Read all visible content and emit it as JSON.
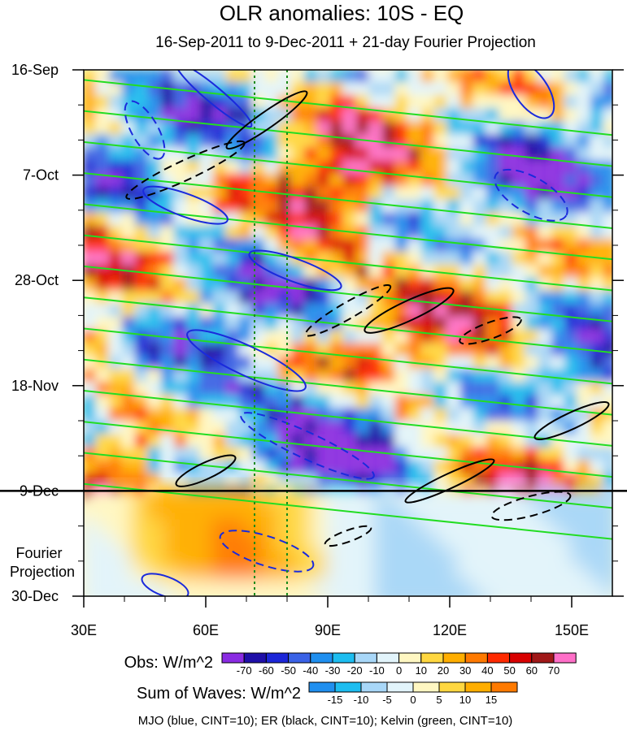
{
  "chart_data": {
    "type": "heatmap",
    "title": "OLR anomalies: 10S - EQ",
    "subtitle": "16-Sep-2011 to 9-Dec-2011 + 21-day Fourier Projection",
    "x_axis": {
      "range": [
        30,
        160
      ],
      "ticks": [
        30,
        60,
        90,
        120,
        150
      ],
      "tick_labels": [
        "30E",
        "60E",
        "90E",
        "120E",
        "150E"
      ]
    },
    "y_axis": {
      "range": [
        "16-Sep-2011",
        "30-Dec-2011"
      ],
      "direction": "downward",
      "tick_labels": [
        "16-Sep",
        "7-Oct",
        "28-Oct",
        "18-Nov",
        "9-Dec",
        "30-Dec"
      ],
      "tick_days": [
        0,
        21,
        42,
        63,
        84,
        105
      ]
    },
    "observation_end": "9-Dec",
    "projection_label": "Fourier Projection",
    "reference_longitudes": [
      72,
      80
    ],
    "obs_colorbar": {
      "label": "Obs: W/m^2",
      "tick_labels": [
        "-70",
        "-60",
        "-50",
        "-40",
        "-30",
        "-20",
        "-10",
        "0",
        "10",
        "20",
        "30",
        "40",
        "50",
        "60",
        "70"
      ],
      "colors": [
        "#8a2be2",
        "#1f0fa8",
        "#1c26d8",
        "#3a62e6",
        "#1f8fef",
        "#1dbdf0",
        "#a8d7f8",
        "#e2f4fb",
        "#fff7c2",
        "#ffd740",
        "#ffae00",
        "#ff7a00",
        "#ff2a00",
        "#d80000",
        "#a01818",
        "#ff6fc8"
      ]
    },
    "wave_colorbar": {
      "label": "Sum of Waves: W/m^2",
      "tick_labels": [
        "-15",
        "-10",
        "-5",
        "0",
        "5",
        "10",
        "15"
      ],
      "colors": [
        "#1f8fef",
        "#1dbdf0",
        "#a8d7f8",
        "#e2f4fb",
        "#fff7c2",
        "#ffd740",
        "#ffae00",
        "#ff7a00"
      ]
    },
    "contour_legend": "MJO (blue, CINT=10); ER (black, CINT=10); Kelvin (green, CINT=10)",
    "contour_colors": {
      "mjo": "#1a2adc",
      "er": "#000000",
      "kelvin": "#22dd22"
    },
    "reference_line_color": "#1a8a1a"
  }
}
